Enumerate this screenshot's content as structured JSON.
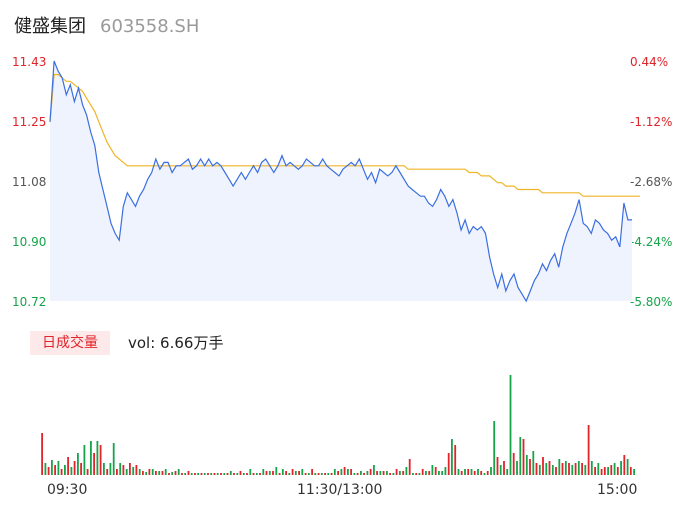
{
  "header": {
    "name": "健盛集团",
    "code": "603558.SH"
  },
  "chart_data": [
    {
      "type": "line",
      "series": [],
      "x_range": [
        "09:30",
        "15:00"
      ],
      "price_ticks": [
        "11.43",
        "11.25",
        "11.08",
        "10.90",
        "10.72"
      ],
      "pct_ticks": [
        "0.44%",
        "-1.12%",
        "-2.68%",
        "-4.24%",
        "-5.80%"
      ],
      "ylim": [
        10.72,
        11.43
      ],
      "price": [
        11.25,
        11.43,
        11.4,
        11.38,
        11.33,
        11.36,
        11.31,
        11.35,
        11.3,
        11.27,
        11.22,
        11.18,
        11.1,
        11.05,
        11.0,
        10.95,
        10.92,
        10.9,
        11.0,
        11.04,
        11.02,
        11.0,
        11.03,
        11.05,
        11.08,
        11.1,
        11.14,
        11.11,
        11.13,
        11.13,
        11.1,
        11.12,
        11.12,
        11.13,
        11.14,
        11.11,
        11.12,
        11.14,
        11.12,
        11.14,
        11.12,
        11.13,
        11.12,
        11.1,
        11.08,
        11.06,
        11.08,
        11.1,
        11.08,
        11.1,
        11.12,
        11.1,
        11.13,
        11.14,
        11.12,
        11.1,
        11.12,
        11.15,
        11.12,
        11.13,
        11.12,
        11.11,
        11.12,
        11.14,
        11.13,
        11.12,
        11.12,
        11.14,
        11.12,
        11.11,
        11.1,
        11.09,
        11.11,
        11.12,
        11.13,
        11.12,
        11.14,
        11.11,
        11.08,
        11.1,
        11.07,
        11.11,
        11.1,
        11.09,
        11.1,
        11.12,
        11.1,
        11.08,
        11.06,
        11.05,
        11.04,
        11.03,
        11.03,
        11.01,
        11.0,
        11.02,
        11.05,
        11.03,
        11.0,
        11.02,
        10.98,
        10.93,
        10.96,
        10.92,
        10.94,
        10.93,
        10.94,
        10.92,
        10.85,
        10.8,
        10.76,
        10.8,
        10.75,
        10.78,
        10.8,
        10.76,
        10.74,
        10.72,
        10.75,
        10.78,
        10.8,
        10.83,
        10.81,
        10.84,
        10.86,
        10.82,
        10.88,
        10.92,
        10.95,
        10.98,
        11.02,
        10.95,
        10.94,
        10.92,
        10.96,
        10.95,
        10.93,
        10.92,
        10.9,
        10.91,
        10.88,
        11.01,
        10.96,
        10.96
      ],
      "avg": [
        11.25,
        11.39,
        11.39,
        11.38,
        11.37,
        11.37,
        11.36,
        11.35,
        11.34,
        11.32,
        11.3,
        11.28,
        11.25,
        11.22,
        11.19,
        11.17,
        11.15,
        11.14,
        11.13,
        11.12,
        11.12,
        11.12,
        11.12,
        11.12,
        11.12,
        11.12,
        11.12,
        11.12,
        11.12,
        11.12,
        11.12,
        11.12,
        11.12,
        11.12,
        11.12,
        11.12,
        11.12,
        11.12,
        11.12,
        11.12,
        11.12,
        11.12,
        11.12,
        11.12,
        11.12,
        11.12,
        11.12,
        11.12,
        11.12,
        11.12,
        11.12,
        11.12,
        11.12,
        11.12,
        11.12,
        11.12,
        11.12,
        11.12,
        11.12,
        11.12,
        11.12,
        11.12,
        11.12,
        11.12,
        11.12,
        11.12,
        11.12,
        11.12,
        11.12,
        11.12,
        11.12,
        11.12,
        11.12,
        11.12,
        11.12,
        11.12,
        11.12,
        11.12,
        11.12,
        11.12,
        11.12,
        11.12,
        11.12,
        11.12,
        11.12,
        11.12,
        11.12,
        11.12,
        11.11,
        11.11,
        11.11,
        11.11,
        11.11,
        11.11,
        11.11,
        11.11,
        11.11,
        11.11,
        11.11,
        11.11,
        11.11,
        11.11,
        11.11,
        11.1,
        11.1,
        11.1,
        11.09,
        11.09,
        11.09,
        11.08,
        11.07,
        11.07,
        11.06,
        11.06,
        11.06,
        11.05,
        11.05,
        11.05,
        11.05,
        11.05,
        11.05,
        11.04,
        11.04,
        11.04,
        11.04,
        11.04,
        11.04,
        11.04,
        11.04,
        11.04,
        11.04,
        11.03,
        11.03,
        11.03,
        11.03,
        11.03,
        11.03,
        11.03,
        11.03,
        11.03,
        11.03,
        11.03,
        11.03,
        11.03,
        11.03,
        11.03
      ]
    },
    {
      "type": "bar",
      "series": [],
      "x_ticks": [
        "09:30",
        "11:30/13:00",
        "15:00"
      ],
      "volume": [
        42,
        12,
        8,
        15,
        10,
        14,
        6,
        10,
        18,
        8,
        14,
        22,
        12,
        30,
        6,
        34,
        22,
        34,
        30,
        12,
        6,
        12,
        32,
        6,
        12,
        10,
        6,
        12,
        8,
        10,
        6,
        4,
        3,
        6,
        6,
        4,
        4,
        4,
        6,
        2,
        3,
        4,
        6,
        2,
        2,
        4,
        2,
        2,
        2,
        2,
        2,
        2,
        2,
        2,
        2,
        2,
        2,
        2,
        4,
        2,
        2,
        4,
        2,
        2,
        6,
        2,
        2,
        2,
        6,
        4,
        4,
        4,
        8,
        2,
        6,
        4,
        2,
        6,
        4,
        4,
        6,
        2,
        2,
        6,
        2,
        2,
        2,
        2,
        2,
        2,
        6,
        4,
        6,
        8,
        6,
        6,
        2,
        2,
        4,
        2,
        4,
        6,
        10,
        4,
        4,
        4,
        4,
        2,
        2,
        6,
        4,
        4,
        8,
        16,
        2,
        2,
        2,
        6,
        4,
        4,
        10,
        8,
        4,
        4,
        8,
        22,
        36,
        30,
        6,
        4,
        6,
        6,
        6,
        4,
        6,
        4,
        2,
        4,
        8,
        54,
        18,
        10,
        14,
        6,
        100,
        22,
        14,
        38,
        36,
        20,
        16,
        24,
        12,
        10,
        18,
        12,
        14,
        10,
        8,
        16,
        12,
        14,
        12,
        10,
        12,
        14,
        12,
        10,
        50,
        14,
        8,
        12,
        6,
        8,
        8,
        10,
        12,
        8,
        14,
        20,
        16,
        8,
        6
      ],
      "up": [
        1,
        0,
        1,
        0,
        1,
        0,
        1,
        0,
        1,
        0,
        1,
        0,
        1,
        0,
        1,
        0,
        1,
        0,
        1,
        0,
        1,
        0,
        0,
        1,
        0,
        1,
        0,
        1,
        0,
        1,
        0,
        1,
        0,
        1,
        0,
        1,
        0,
        1,
        0,
        1,
        0,
        1,
        0,
        1,
        0,
        1,
        0,
        1,
        0,
        1,
        0,
        1,
        0,
        1,
        0,
        1,
        0,
        1,
        0,
        1,
        0,
        1,
        0,
        1,
        0,
        1,
        0,
        1,
        0,
        1,
        0,
        1,
        0,
        1,
        0,
        1,
        0,
        1,
        0,
        1,
        0,
        1,
        0,
        1,
        0,
        1,
        0,
        1,
        0,
        1,
        0,
        1,
        0,
        1,
        0,
        1,
        0,
        1,
        0,
        1,
        0,
        1,
        0,
        1,
        0,
        1,
        0,
        1,
        0,
        1,
        0,
        1,
        0,
        1,
        0,
        1,
        0,
        1,
        0,
        1,
        0,
        1,
        0,
        0,
        0,
        1,
        0,
        1,
        0,
        1,
        0,
        1,
        0,
        1,
        0,
        1,
        0,
        1,
        0,
        0,
        1,
        0,
        1,
        0,
        0,
        1,
        0,
        0,
        1,
        0,
        1,
        0,
        1,
        0,
        1,
        0,
        1,
        0,
        1,
        0,
        1,
        0,
        1,
        0,
        1,
        0,
        1,
        0,
        1,
        0,
        1,
        0,
        1,
        1,
        0,
        1,
        0,
        1,
        0,
        1,
        0,
        1,
        0,
        1,
        0,
        1,
        0
      ]
    }
  ],
  "volume_panel": {
    "tab_label": "日成交量",
    "vol_text": "vol: 6.66万手"
  },
  "colors": {
    "price_line": "#3b6fe0",
    "avg_line": "#f0b429",
    "up": "#e0242a",
    "down": "#17a34a",
    "fill": "#eef3fd"
  }
}
